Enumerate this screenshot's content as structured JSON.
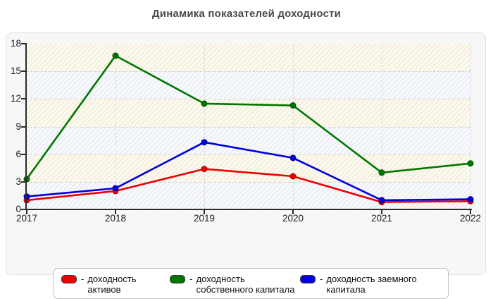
{
  "header": {
    "title": "Динамика показателей доходности"
  },
  "legend": {
    "dash": "-"
  },
  "chart_data": {
    "type": "line",
    "title": "Динамика показателей доходности",
    "categories": [
      "2017",
      "2018",
      "2019",
      "2020",
      "2021",
      "2022"
    ],
    "y_ticks": [
      0,
      3,
      6,
      9,
      12,
      15,
      18
    ],
    "ylim": [
      0,
      18
    ],
    "xlim_labels": [
      "2017",
      "2022"
    ],
    "grid": true,
    "legend_position": "bottom",
    "plot_band_colors": [
      "cream",
      "blue"
    ],
    "series": [
      {
        "key": "assets",
        "name": "доходность активов",
        "color": "#ee0000",
        "dot_border": "#a80000",
        "values": [
          1.0,
          2.0,
          4.4,
          3.6,
          0.8,
          0.9
        ]
      },
      {
        "key": "equity",
        "name": "доходность собственного капитала",
        "color": "#007700",
        "dot_border": "#004d00",
        "values": [
          3.3,
          16.7,
          11.5,
          11.3,
          4.0,
          5.0
        ]
      },
      {
        "key": "debt",
        "name": "доходность заемного капитала",
        "color": "#0000dd",
        "dot_border": "#000090",
        "values": [
          1.4,
          2.3,
          7.3,
          5.6,
          1.0,
          1.1
        ]
      }
    ]
  }
}
